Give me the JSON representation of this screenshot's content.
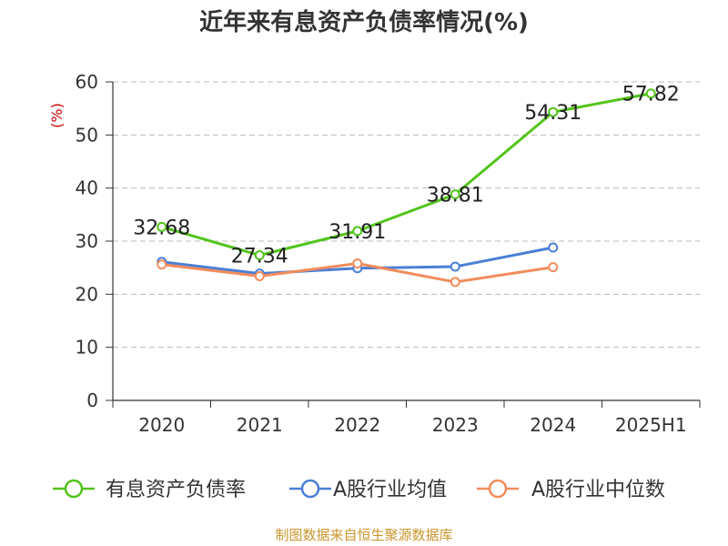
{
  "chart_data": {
    "type": "line",
    "title": "近年来有息资产负债率情况(%)",
    "ylabel": "(%)",
    "xlabel": "",
    "categories": [
      "2020",
      "2021",
      "2022",
      "2023",
      "2024",
      "2025H1"
    ],
    "ylim": [
      0,
      60
    ],
    "yticks": [
      0,
      10,
      20,
      30,
      40,
      50,
      60
    ],
    "grid": true,
    "legend_position": "bottom",
    "series": [
      {
        "name": "有息资产负债率",
        "color": "#52c41a",
        "values": [
          32.68,
          27.34,
          31.91,
          38.81,
          54.31,
          57.82
        ],
        "data_labels": [
          "32.68",
          "27.34",
          "31.91",
          "38.81",
          "54.31",
          "57.82"
        ]
      },
      {
        "name": "A股行业均值",
        "color": "#4a7fd6",
        "values": [
          26.1,
          23.9,
          24.9,
          25.2,
          28.8,
          null
        ]
      },
      {
        "name": "A股行业中位数",
        "color": "#f28c5c",
        "values": [
          25.6,
          23.4,
          25.8,
          22.3,
          25.1,
          null
        ]
      }
    ]
  },
  "footer": {
    "source": "制图数据来自恒生聚源数据库"
  }
}
